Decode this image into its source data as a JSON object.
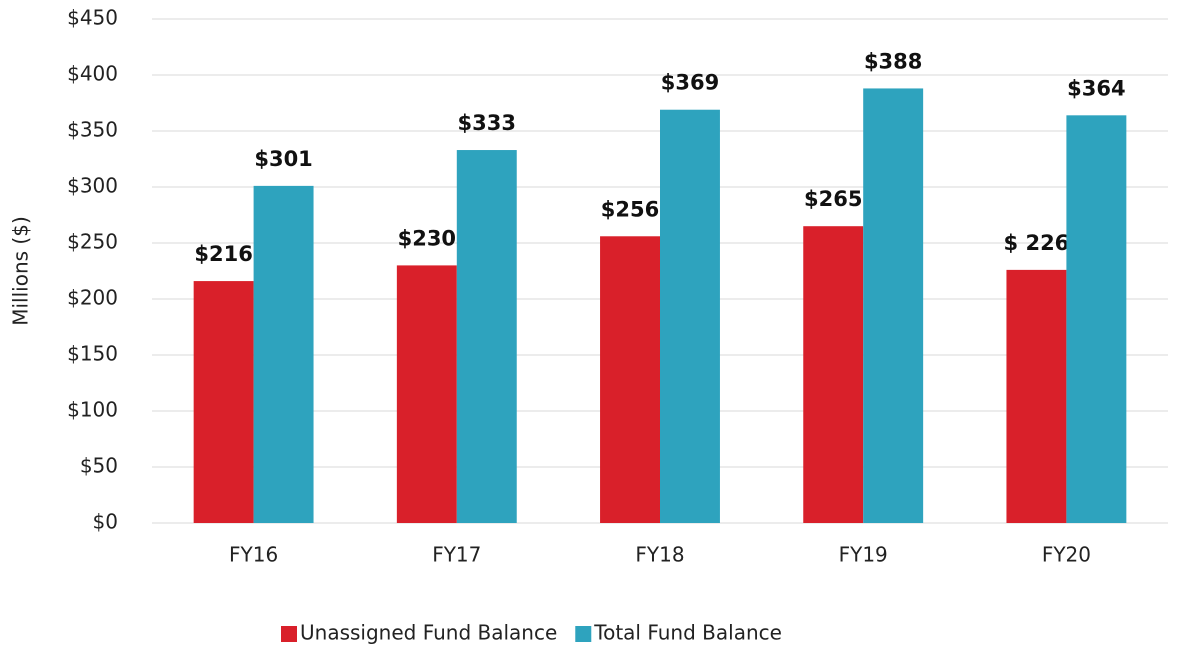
{
  "chart_data": {
    "type": "bar",
    "y_axis_label": "Millions ($)",
    "categories": [
      "FY16",
      "FY17",
      "FY18",
      "FY19",
      "FY20"
    ],
    "series": [
      {
        "name": "Unassigned Fund Balance",
        "color": "#d9202a",
        "values": [
          216,
          230,
          256,
          265,
          226
        ],
        "value_labels": [
          "$216",
          "$230",
          "$256",
          "$265",
          "$ 226"
        ]
      },
      {
        "name": "Total Fund Balance",
        "color": "#2ea3be",
        "values": [
          301,
          333,
          369,
          388,
          364
        ],
        "value_labels": [
          "$301",
          "$333",
          "$369",
          "$388",
          "$364"
        ]
      }
    ],
    "ylim": [
      0,
      450
    ],
    "yticks": [
      {
        "value": 0,
        "label": "$0"
      },
      {
        "value": 50,
        "label": "$50"
      },
      {
        "value": 100,
        "label": "$100"
      },
      {
        "value": 150,
        "label": "$150"
      },
      {
        "value": 200,
        "label": "$200"
      },
      {
        "value": 250,
        "label": "$250"
      },
      {
        "value": 300,
        "label": "$300"
      },
      {
        "value": 350,
        "label": "$350"
      },
      {
        "value": 400,
        "label": "$400"
      },
      {
        "value": 450,
        "label": "$450"
      }
    ],
    "grid": true,
    "legend": "bottom"
  }
}
